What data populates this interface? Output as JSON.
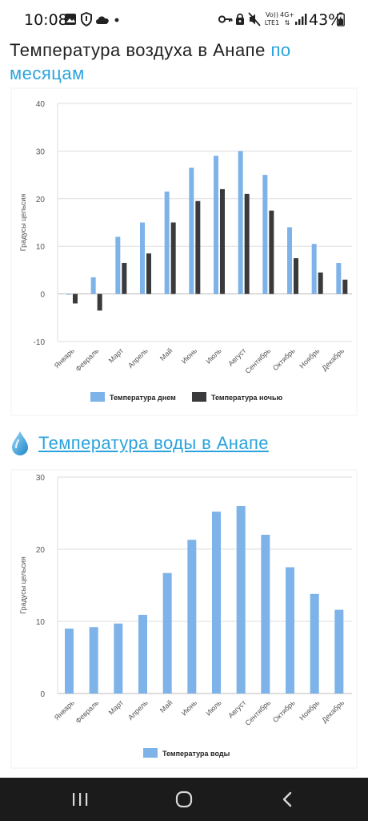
{
  "status_bar": {
    "time": "10:08",
    "battery": "43%",
    "network": "4G+",
    "carrier": "LTE1",
    "volte": "Vo))"
  },
  "title": {
    "part1": "Температура воздуха в Анапе ",
    "part2": "по месяцам"
  },
  "water_heading": {
    "icon": "water-drop-icon",
    "link_text": "Температура воды в Анапе"
  },
  "colors": {
    "accent": "#2ba3dc",
    "day": "#7db3e8",
    "night": "#3a3a3d",
    "water": "#7db3e8"
  },
  "nav_bar": {
    "buttons": [
      "recent-apps",
      "home",
      "back"
    ]
  },
  "chart_data": [
    {
      "type": "bar",
      "ylabel": "Градусы цельсия",
      "ylim": [
        -10,
        40
      ],
      "yticks": [
        -10,
        0,
        10,
        20,
        30,
        40
      ],
      "grid": true,
      "legend_position": "bottom",
      "categories": [
        "Январь",
        "Февраль",
        "Март",
        "Апрель",
        "Май",
        "Июнь",
        "Июль",
        "Август",
        "Сентябрь",
        "Октябрь",
        "Ноябрь",
        "Декабрь"
      ],
      "series": [
        {
          "name": "Температура днем",
          "values": [
            0,
            3.5,
            12,
            15,
            21.5,
            26.5,
            29,
            30,
            25,
            14,
            10.5,
            6.5
          ]
        },
        {
          "name": "Температура ночью",
          "values": [
            -2,
            -3.5,
            6.5,
            8.5,
            15,
            19.5,
            22,
            21,
            17.5,
            7.5,
            4.5,
            3
          ]
        }
      ]
    },
    {
      "type": "bar",
      "ylabel": "Градусы цельсия",
      "ylim": [
        0,
        30
      ],
      "yticks": [
        0,
        10,
        20,
        30
      ],
      "grid": true,
      "legend_position": "bottom",
      "categories": [
        "Январь",
        "Февраль",
        "Март",
        "Апрель",
        "Май",
        "Июнь",
        "Июль",
        "Август",
        "Сентябрь",
        "Октябрь",
        "Ноябрь",
        "Декабрь"
      ],
      "series": [
        {
          "name": "Температура воды",
          "values": [
            9,
            9.2,
            9.7,
            10.9,
            16.7,
            21.3,
            25.2,
            26,
            22,
            17.5,
            13.8,
            11.6
          ]
        }
      ]
    }
  ]
}
